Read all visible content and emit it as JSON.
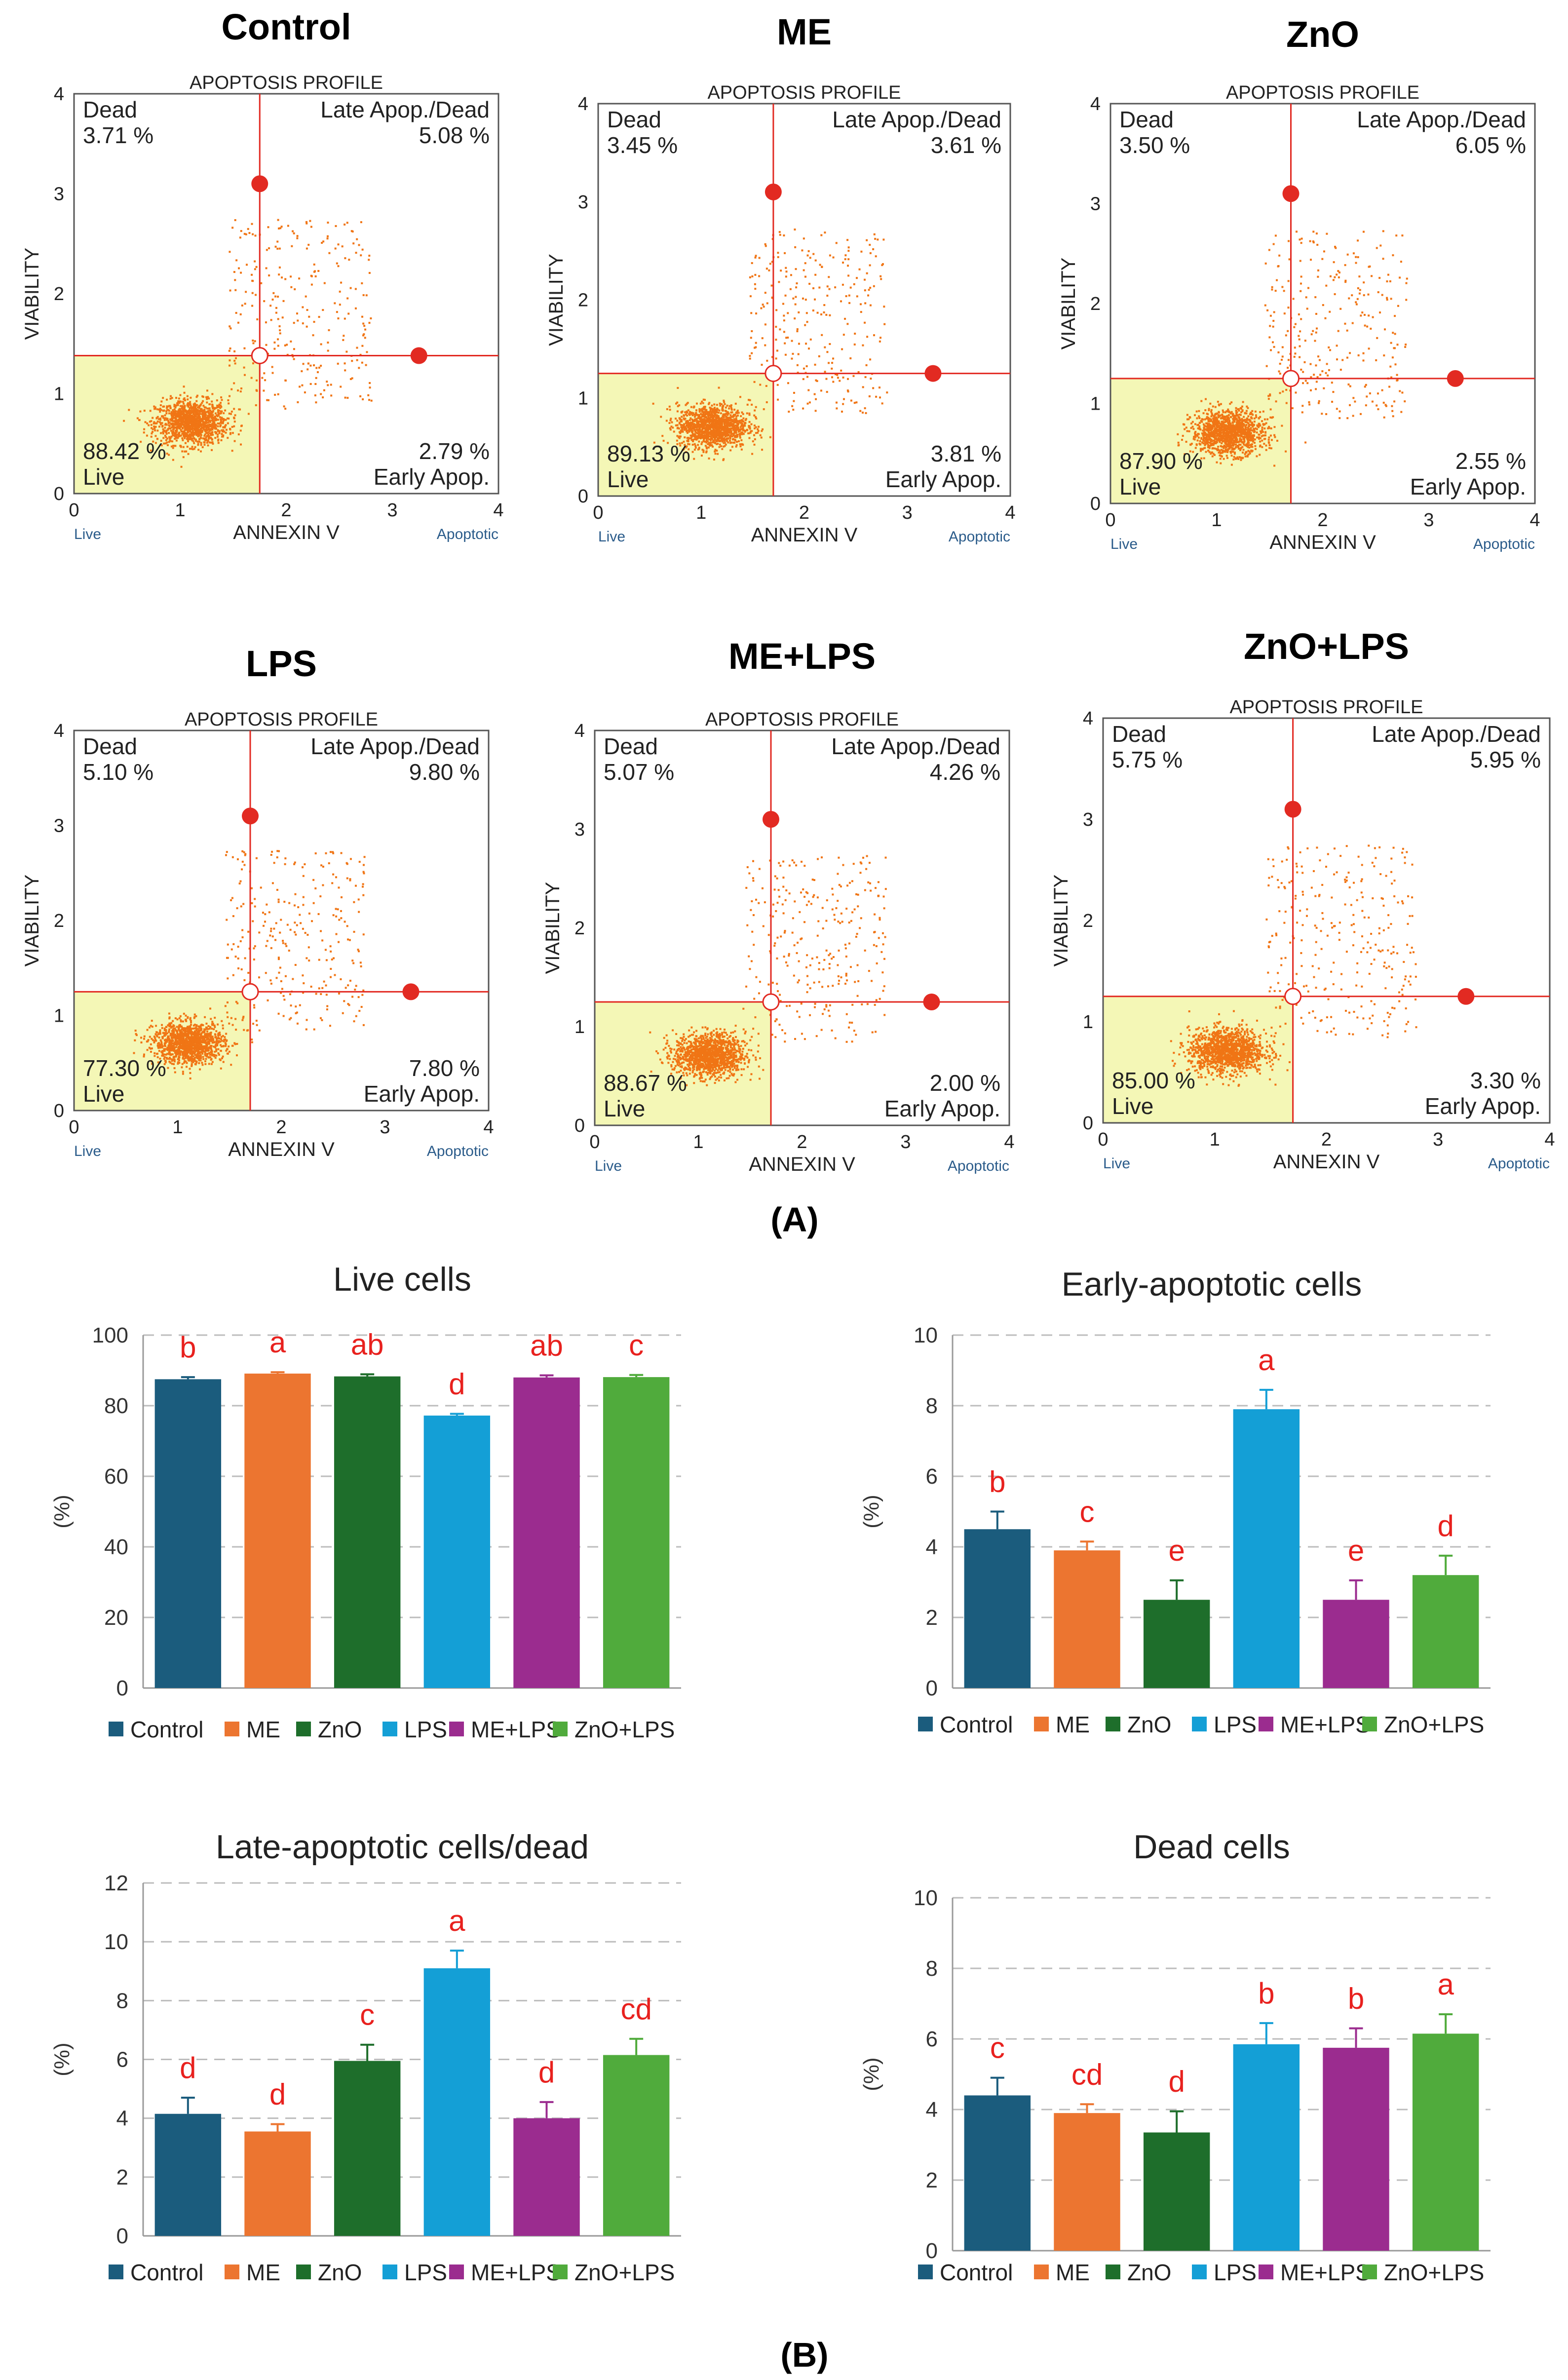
{
  "panels": {
    "a": "(A)",
    "b": "(B)"
  },
  "colors": {
    "Control": "#1b5c7d",
    "ME": "#ec7530",
    "ZnO": "#1e6e2b",
    "LPS": "#149fd6",
    "ME+LPS": "#9b2c8f",
    "ZnO+LPS": "#50ab3c",
    "dot": "#f07515",
    "gate": "#e22a22",
    "live_fill": "#f4f7b6",
    "sig": "#e8211e"
  },
  "flow": {
    "profile_title": "APOPTOSIS PROFILE",
    "xlabel": "ANNEXIN V",
    "ylabel": "VIABILITY",
    "x_left_note": "Live",
    "x_right_note": "Apoptotic",
    "ticks": [
      "0",
      "1",
      "2",
      "3",
      "4"
    ],
    "quadrant_labels": {
      "dead": "Dead",
      "late": "Late Apop./Dead",
      "live": "Live",
      "early": "Early Apop."
    },
    "plots": [
      {
        "title": "Control",
        "dead": "3.71 %",
        "late": "5.08 %",
        "live": "88.42 %",
        "early": "2.79 %",
        "vx": 1.75,
        "hy": 1.38
      },
      {
        "title": "ME",
        "dead": "3.45 %",
        "late": "3.61 %",
        "live": "89.13 %",
        "early": "3.81 %",
        "vx": 1.7,
        "hy": 1.25
      },
      {
        "title": "ZnO",
        "dead": "3.50 %",
        "late": "6.05 %",
        "live": "87.90 %",
        "early": "2.55 %",
        "vx": 1.7,
        "hy": 1.25
      },
      {
        "title": "LPS",
        "dead": "5.10 %",
        "late": "9.80 %",
        "live": "77.30 %",
        "early": "7.80 %",
        "vx": 1.7,
        "hy": 1.25
      },
      {
        "title": "ME+LPS",
        "dead": "5.07 %",
        "late": "4.26 %",
        "live": "88.67 %",
        "early": "2.00 %",
        "vx": 1.7,
        "hy": 1.25
      },
      {
        "title": "ZnO+LPS",
        "dead": "5.75 %",
        "late": "5.95 %",
        "live": "85.00 %",
        "early": "3.30 %",
        "vx": 1.7,
        "hy": 1.25
      }
    ]
  },
  "chart_data": [
    {
      "type": "bar",
      "title": "Live cells",
      "ylabel": "(%)",
      "ylim": [
        0,
        100
      ],
      "yticks": [
        0,
        20,
        40,
        60,
        80,
        100
      ],
      "categories": [
        "Control",
        "ME",
        "ZnO",
        "LPS",
        "ME+LPS",
        "ZnO+LPS"
      ],
      "values": [
        87.5,
        89.1,
        88.3,
        77.2,
        88.0,
        88.1
      ],
      "errors": [
        0.6,
        0.4,
        0.6,
        0.5,
        0.6,
        0.6
      ],
      "letters": [
        "b",
        "a",
        "ab",
        "d",
        "ab",
        "c"
      ]
    },
    {
      "type": "bar",
      "title": "Early-apoptotic cells",
      "ylabel": "(%)",
      "ylim": [
        0,
        10
      ],
      "yticks": [
        0,
        2,
        4,
        6,
        8,
        10
      ],
      "categories": [
        "Control",
        "ME",
        "ZnO",
        "LPS",
        "ME+LPS",
        "ZnO+LPS"
      ],
      "values": [
        4.5,
        3.9,
        2.5,
        7.9,
        2.5,
        3.2
      ],
      "errors": [
        0.5,
        0.25,
        0.55,
        0.55,
        0.55,
        0.55
      ],
      "letters": [
        "b",
        "c",
        "e",
        "a",
        "e",
        "d"
      ]
    },
    {
      "type": "bar",
      "title": "Late-apoptotic cells/dead",
      "ylabel": "(%)",
      "ylim": [
        0,
        12
      ],
      "yticks": [
        0,
        2,
        4,
        6,
        8,
        10,
        12
      ],
      "categories": [
        "Control",
        "ME",
        "ZnO",
        "LPS",
        "ME+LPS",
        "ZnO+LPS"
      ],
      "values": [
        4.15,
        3.55,
        5.95,
        9.1,
        4.0,
        6.15
      ],
      "errors": [
        0.55,
        0.25,
        0.55,
        0.6,
        0.55,
        0.55
      ],
      "letters": [
        "d",
        "d",
        "c",
        "a",
        "d",
        "cd"
      ]
    },
    {
      "type": "bar",
      "title": "Dead cells",
      "ylabel": "(%)",
      "ylim": [
        0,
        10
      ],
      "yticks": [
        0,
        2,
        4,
        6,
        8,
        10
      ],
      "categories": [
        "Control",
        "ME",
        "ZnO",
        "LPS",
        "ME+LPS",
        "ZnO+LPS"
      ],
      "values": [
        4.4,
        3.9,
        3.35,
        5.85,
        5.75,
        6.15
      ],
      "errors": [
        0.5,
        0.25,
        0.6,
        0.6,
        0.55,
        0.55
      ],
      "letters": [
        "c",
        "cd",
        "d",
        "b",
        "b",
        "a"
      ]
    }
  ]
}
